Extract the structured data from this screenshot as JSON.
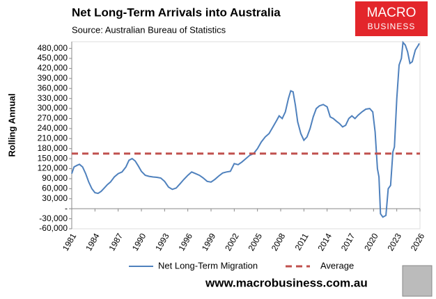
{
  "chart_data": {
    "type": "line",
    "title": "Net Long-Term Arrivals into Australia",
    "subtitle": "Source: Australian Bureau of Statistics",
    "y_label": "Rolling Annual",
    "logo": {
      "line1": "MACRO",
      "line2": "BUSINESS"
    },
    "website": "www.macrobusiness.com.au",
    "xlim": [
      1981,
      2026
    ],
    "xticks": [
      1981,
      1984,
      1987,
      1990,
      1993,
      1996,
      1999,
      2002,
      2005,
      2008,
      2011,
      2014,
      2017,
      2020,
      2023,
      2026
    ],
    "ylim": [
      -60000,
      500000
    ],
    "yticks": [
      {
        "value": -60000,
        "label": "-60,000"
      },
      {
        "value": -30000,
        "label": "-30,000"
      },
      {
        "value": 0,
        "label": "-"
      },
      {
        "value": 30000,
        "label": "30,000"
      },
      {
        "value": 60000,
        "label": "60,000"
      },
      {
        "value": 90000,
        "label": "90,000"
      },
      {
        "value": 120000,
        "label": "120,000"
      },
      {
        "value": 150000,
        "label": "150,000"
      },
      {
        "value": 180000,
        "label": "180,000"
      },
      {
        "value": 210000,
        "label": "210,000"
      },
      {
        "value": 240000,
        "label": "240,000"
      },
      {
        "value": 270000,
        "label": "270,000"
      },
      {
        "value": 300000,
        "label": "300,000"
      },
      {
        "value": 330000,
        "label": "330,000"
      },
      {
        "value": 360000,
        "label": "360,000"
      },
      {
        "value": 390000,
        "label": "390,000"
      },
      {
        "value": 420000,
        "label": "420,000"
      },
      {
        "value": 450000,
        "label": "450,000"
      },
      {
        "value": 480000,
        "label": "480,000"
      }
    ],
    "series": [
      {
        "name": "Net Long-Term Migration",
        "color": "#4f81bd",
        "dash": false,
        "x": [
          1981.0,
          1981.3,
          1981.7,
          1982.0,
          1982.4,
          1982.8,
          1983.2,
          1983.6,
          1984.0,
          1984.4,
          1984.8,
          1985.2,
          1985.6,
          1986.0,
          1986.5,
          1987.0,
          1987.5,
          1988.0,
          1988.4,
          1988.8,
          1989.2,
          1989.6,
          1990.0,
          1990.5,
          1991.0,
          1991.5,
          1992.0,
          1992.5,
          1993.0,
          1993.5,
          1994.0,
          1994.5,
          1995.0,
          1995.5,
          1996.0,
          1996.5,
          1997.0,
          1997.5,
          1998.0,
          1998.5,
          1999.0,
          1999.5,
          2000.0,
          2000.5,
          2001.0,
          2001.5,
          2002.0,
          2002.5,
          2003.0,
          2003.5,
          2004.0,
          2004.5,
          2005.0,
          2005.5,
          2006.0,
          2006.5,
          2007.0,
          2007.5,
          2007.8,
          2008.2,
          2008.6,
          2009.0,
          2009.3,
          2009.6,
          2009.9,
          2010.2,
          2010.6,
          2011.0,
          2011.4,
          2011.8,
          2012.2,
          2012.6,
          2013.0,
          2013.5,
          2014.0,
          2014.4,
          2014.8,
          2015.2,
          2015.6,
          2016.0,
          2016.4,
          2016.8,
          2017.2,
          2017.6,
          2018.0,
          2018.5,
          2019.0,
          2019.5,
          2019.9,
          2020.2,
          2020.5,
          2020.7,
          2020.9,
          2021.2,
          2021.6,
          2021.9,
          2022.2,
          2022.5,
          2022.7,
          2023.0,
          2023.3,
          2023.6,
          2023.8,
          2024.1,
          2024.4,
          2024.7,
          2025.0,
          2025.4,
          2025.8,
          2025.9
        ],
        "values": [
          105000,
          125000,
          130000,
          133000,
          125000,
          105000,
          80000,
          60000,
          48000,
          46000,
          52000,
          62000,
          72000,
          80000,
          95000,
          105000,
          110000,
          125000,
          145000,
          150000,
          143000,
          128000,
          112000,
          100000,
          97000,
          95000,
          94000,
          92000,
          82000,
          65000,
          58000,
          62000,
          75000,
          88000,
          100000,
          110000,
          105000,
          100000,
          92000,
          82000,
          80000,
          88000,
          98000,
          107000,
          110000,
          112000,
          135000,
          132000,
          140000,
          150000,
          160000,
          165000,
          180000,
          200000,
          215000,
          225000,
          245000,
          265000,
          278000,
          270000,
          290000,
          330000,
          353000,
          350000,
          310000,
          260000,
          225000,
          205000,
          215000,
          240000,
          275000,
          300000,
          308000,
          312000,
          305000,
          275000,
          270000,
          262000,
          255000,
          245000,
          250000,
          270000,
          278000,
          270000,
          280000,
          290000,
          298000,
          300000,
          290000,
          230000,
          120000,
          95000,
          -15000,
          -25000,
          -20000,
          60000,
          70000,
          170000,
          185000,
          330000,
          430000,
          450000,
          498000,
          490000,
          470000,
          435000,
          440000,
          475000,
          490000,
          495000
        ]
      },
      {
        "name": "Average",
        "color": "#c0504d",
        "dash": true,
        "x": [
          1981,
          2026
        ],
        "values": [
          165000,
          165000
        ]
      }
    ]
  }
}
